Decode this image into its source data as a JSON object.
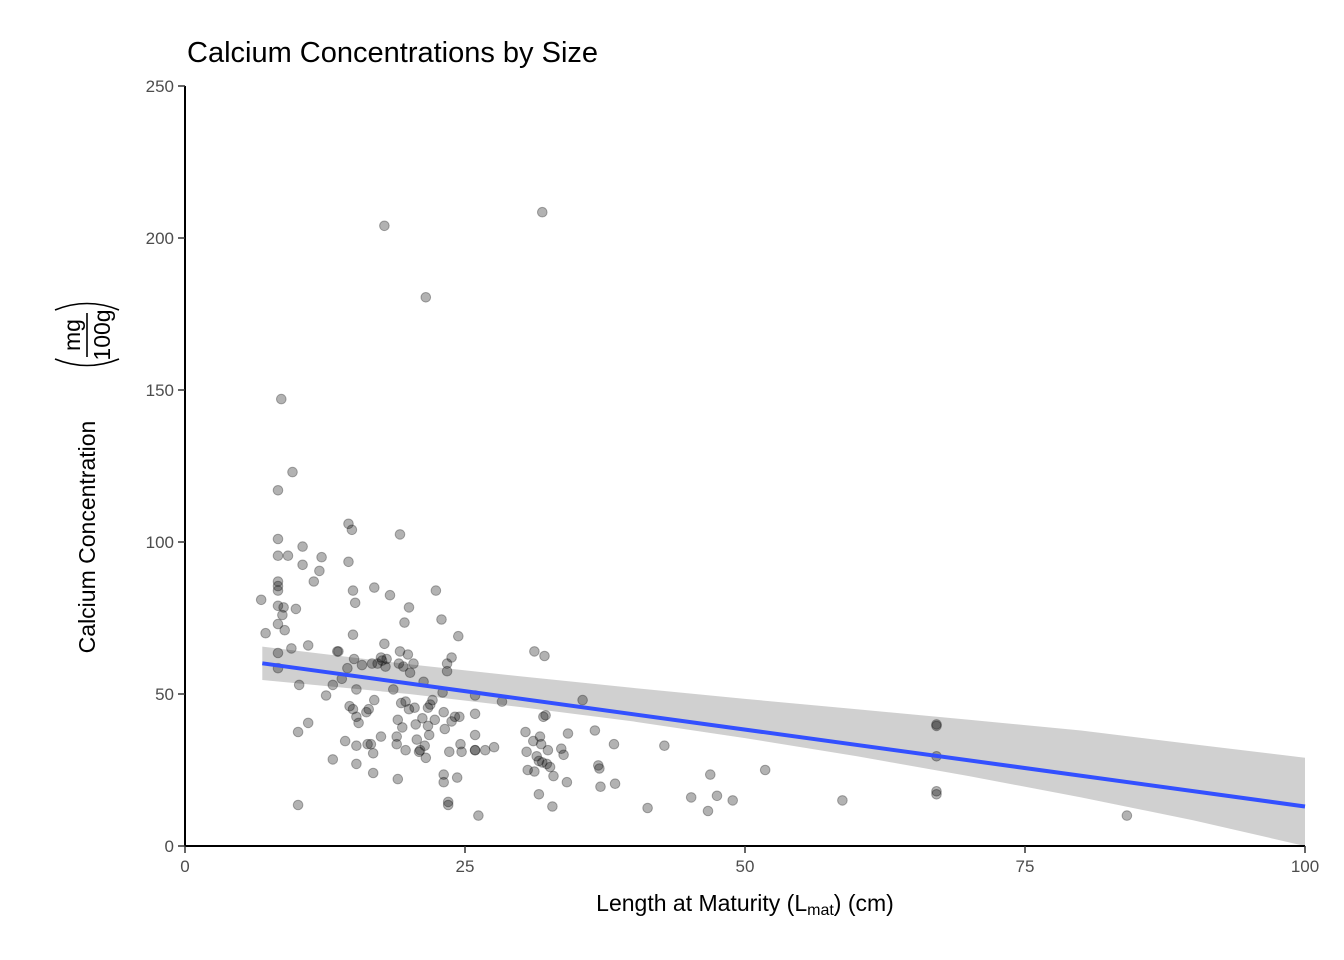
{
  "chart_data": {
    "type": "scatter",
    "title": "Calcium Concentrations by Size",
    "xlabel": {
      "prefix": "Length at Maturity (L",
      "subscript": "mat",
      "suffix": ") (cm)"
    },
    "ylabel": {
      "text": "Calcium Concentration",
      "unit_numerator": "mg",
      "unit_denominator": "100g"
    },
    "xlim": [
      0,
      100
    ],
    "ylim": [
      0,
      250
    ],
    "x_ticks": [
      0,
      25,
      50,
      75,
      100
    ],
    "y_ticks": [
      0,
      50,
      100,
      150,
      200,
      250
    ],
    "grid": false,
    "point_color": "#000000",
    "point_opacity": 0.3,
    "fit_color": "#3350ff",
    "ci_color": "#c4c4c4",
    "trend": {
      "x": [
        6.9,
        100
      ],
      "y": [
        60.1,
        13.0
      ]
    },
    "ci_band": {
      "x": [
        6.9,
        20,
        30,
        40,
        50,
        60,
        70,
        80,
        90,
        100
      ],
      "upper": [
        65.6,
        59.8,
        55.8,
        52.0,
        48.4,
        45.0,
        41.5,
        38.0,
        33.5,
        29.0
      ],
      "lower": [
        54.6,
        50.0,
        45.7,
        41.0,
        35.5,
        29.5,
        23.0,
        16.0,
        8.5,
        0.0
      ]
    },
    "points": [
      [
        6.8,
        81
      ],
      [
        7.2,
        70
      ],
      [
        8.3,
        117
      ],
      [
        8.3,
        101
      ],
      [
        8.3,
        95.5
      ],
      [
        8.3,
        87
      ],
      [
        8.3,
        85.5
      ],
      [
        8.3,
        84
      ],
      [
        8.3,
        79
      ],
      [
        8.3,
        73
      ],
      [
        8.3,
        63.5
      ],
      [
        8.3,
        58.5
      ],
      [
        8.6,
        147
      ],
      [
        8.7,
        76
      ],
      [
        8.8,
        78.5
      ],
      [
        8.9,
        71
      ],
      [
        9.2,
        95.5
      ],
      [
        9.5,
        65
      ],
      [
        9.6,
        123
      ],
      [
        9.9,
        78
      ],
      [
        10.1,
        13.5
      ],
      [
        10.1,
        37.5
      ],
      [
        10.2,
        53
      ],
      [
        10.5,
        98.5
      ],
      [
        10.5,
        92.5
      ],
      [
        11.0,
        66
      ],
      [
        11.0,
        40.5
      ],
      [
        11.5,
        87
      ],
      [
        12.0,
        90.5
      ],
      [
        12.2,
        95
      ],
      [
        12.6,
        49.5
      ],
      [
        13.2,
        53
      ],
      [
        13.2,
        28.5
      ],
      [
        13.6,
        64
      ],
      [
        13.7,
        64
      ],
      [
        14.0,
        55
      ],
      [
        14.3,
        34.5
      ],
      [
        14.5,
        58.5
      ],
      [
        14.6,
        106
      ],
      [
        14.6,
        93.5
      ],
      [
        14.7,
        46
      ],
      [
        14.9,
        104
      ],
      [
        15.0,
        84
      ],
      [
        15.0,
        69.5
      ],
      [
        15.0,
        45
      ],
      [
        15.1,
        61.5
      ],
      [
        15.2,
        80
      ],
      [
        15.3,
        51.5
      ],
      [
        15.3,
        42.5
      ],
      [
        15.3,
        33
      ],
      [
        15.3,
        27
      ],
      [
        15.5,
        40.5
      ],
      [
        15.8,
        59.5
      ],
      [
        16.2,
        44
      ],
      [
        16.3,
        33.5
      ],
      [
        16.4,
        45
      ],
      [
        16.6,
        33.5
      ],
      [
        16.7,
        60
      ],
      [
        16.8,
        30.5
      ],
      [
        16.8,
        24
      ],
      [
        16.9,
        48
      ],
      [
        16.9,
        85
      ],
      [
        17.2,
        60
      ],
      [
        17.5,
        36
      ],
      [
        17.5,
        62
      ],
      [
        17.6,
        61
      ],
      [
        17.8,
        204
      ],
      [
        17.8,
        66.5
      ],
      [
        17.9,
        59
      ],
      [
        18.0,
        61.5
      ],
      [
        18.3,
        82.5
      ],
      [
        18.6,
        51.5
      ],
      [
        18.9,
        36
      ],
      [
        18.9,
        33.5
      ],
      [
        19.0,
        41.5
      ],
      [
        19.0,
        22
      ],
      [
        19.1,
        60
      ],
      [
        19.2,
        102.5
      ],
      [
        19.2,
        64
      ],
      [
        19.3,
        47
      ],
      [
        19.4,
        39
      ],
      [
        19.5,
        59
      ],
      [
        19.6,
        73.5
      ],
      [
        19.7,
        31.5
      ],
      [
        19.7,
        47.5
      ],
      [
        19.9,
        63
      ],
      [
        20.0,
        78.5
      ],
      [
        20.0,
        45
      ],
      [
        20.1,
        57
      ],
      [
        20.4,
        60
      ],
      [
        20.5,
        45.5
      ],
      [
        20.6,
        40
      ],
      [
        20.7,
        35
      ],
      [
        20.9,
        31
      ],
      [
        21.0,
        31.5
      ],
      [
        21.2,
        42
      ],
      [
        21.3,
        54
      ],
      [
        21.4,
        33
      ],
      [
        21.5,
        180.5
      ],
      [
        21.5,
        29
      ],
      [
        21.7,
        45.5
      ],
      [
        21.7,
        39.5
      ],
      [
        21.8,
        36.5
      ],
      [
        21.9,
        46.5
      ],
      [
        22.1,
        48
      ],
      [
        22.3,
        41.5
      ],
      [
        22.4,
        84
      ],
      [
        22.9,
        74.5
      ],
      [
        23.0,
        50.5
      ],
      [
        23.1,
        44
      ],
      [
        23.1,
        23.5
      ],
      [
        23.1,
        21
      ],
      [
        23.2,
        38.5
      ],
      [
        23.4,
        60
      ],
      [
        23.4,
        57.5
      ],
      [
        23.5,
        14.5
      ],
      [
        23.5,
        13.5
      ],
      [
        23.6,
        31
      ],
      [
        23.8,
        62
      ],
      [
        23.8,
        41
      ],
      [
        24.1,
        42.5
      ],
      [
        24.3,
        22.5
      ],
      [
        24.4,
        69
      ],
      [
        24.5,
        42.5
      ],
      [
        24.6,
        33.5
      ],
      [
        24.7,
        31
      ],
      [
        25.9,
        49.5
      ],
      [
        25.9,
        43.5
      ],
      [
        25.9,
        36.5
      ],
      [
        25.9,
        31.5
      ],
      [
        25.9,
        31.5
      ],
      [
        26.2,
        10
      ],
      [
        26.8,
        31.5
      ],
      [
        27.6,
        32.5
      ],
      [
        28.3,
        47.5
      ],
      [
        30.4,
        37.5
      ],
      [
        30.5,
        31
      ],
      [
        30.6,
        25
      ],
      [
        31.1,
        34.5
      ],
      [
        31.2,
        24.5
      ],
      [
        31.2,
        64
      ],
      [
        31.4,
        29.5
      ],
      [
        31.6,
        28
      ],
      [
        31.6,
        17
      ],
      [
        31.7,
        36
      ],
      [
        31.8,
        33.5
      ],
      [
        31.9,
        208.5
      ],
      [
        31.9,
        27.5
      ],
      [
        32.0,
        42.5
      ],
      [
        32.1,
        62.5
      ],
      [
        32.2,
        43
      ],
      [
        32.3,
        27
      ],
      [
        32.4,
        31.5
      ],
      [
        32.6,
        26
      ],
      [
        32.8,
        13
      ],
      [
        32.9,
        23
      ],
      [
        33.6,
        32
      ],
      [
        33.8,
        30
      ],
      [
        34.1,
        21
      ],
      [
        34.2,
        37
      ],
      [
        35.5,
        48
      ],
      [
        36.6,
        38
      ],
      [
        36.9,
        26.5
      ],
      [
        37.0,
        25.5
      ],
      [
        37.1,
        19.5
      ],
      [
        38.3,
        33.5
      ],
      [
        38.4,
        20.5
      ],
      [
        41.3,
        12.5
      ],
      [
        42.8,
        33
      ],
      [
        45.2,
        16
      ],
      [
        46.7,
        11.5
      ],
      [
        46.9,
        23.5
      ],
      [
        47.5,
        16.5
      ],
      [
        48.9,
        15
      ],
      [
        51.8,
        25
      ],
      [
        58.7,
        15
      ],
      [
        67.1,
        40
      ],
      [
        67.1,
        39.5
      ],
      [
        67.1,
        29.5
      ],
      [
        67.1,
        18
      ],
      [
        67.1,
        17
      ],
      [
        84.1,
        10
      ]
    ]
  }
}
